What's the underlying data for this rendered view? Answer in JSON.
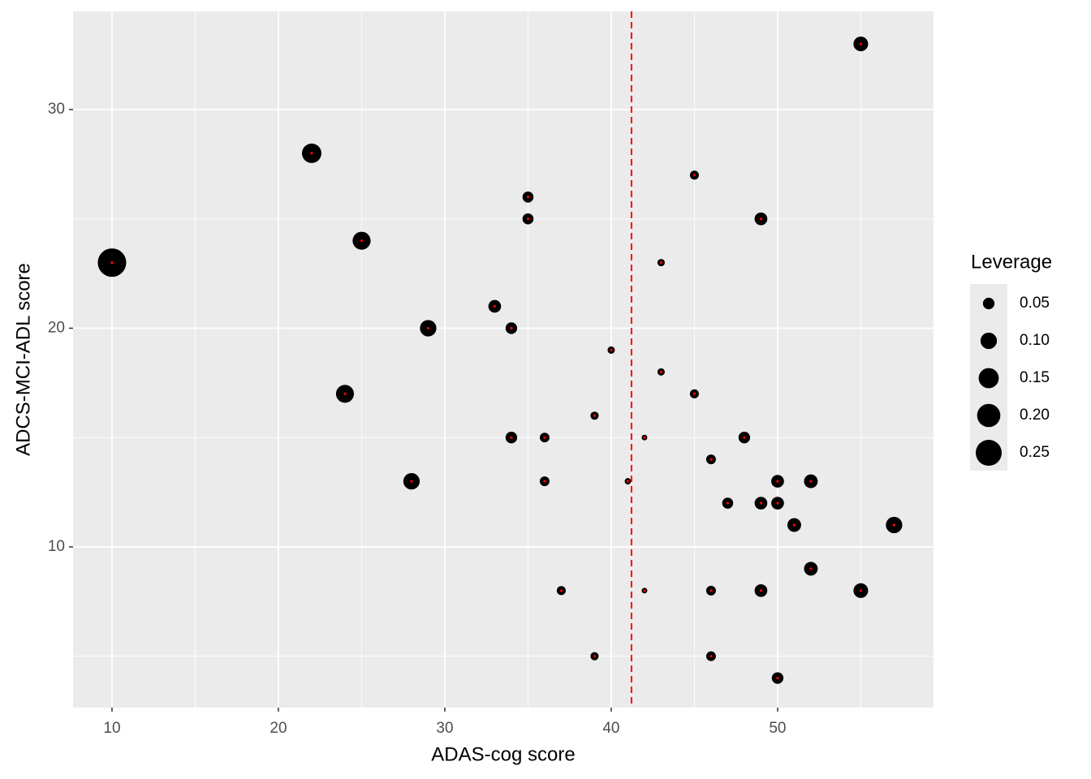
{
  "chart_data": {
    "type": "scatter",
    "x_label": "ADAS-cog score",
    "y_label": "ADCS-MCI-ADL score",
    "legend_title": "Leverage",
    "x": [
      10,
      22,
      25,
      29,
      24,
      28,
      33,
      34,
      35,
      35,
      34,
      36,
      36,
      37,
      39,
      39,
      40,
      41,
      42,
      42,
      43,
      43,
      45,
      45,
      46,
      46,
      46,
      47,
      48,
      49,
      49,
      49,
      50,
      50,
      50,
      51,
      52,
      52,
      55,
      55,
      57
    ],
    "y": [
      23,
      28,
      24,
      20,
      17,
      13,
      21,
      20,
      26,
      25,
      15,
      15,
      13,
      8,
      16,
      5,
      19,
      13,
      15,
      8,
      23,
      18,
      27,
      17,
      14,
      8,
      5,
      12,
      15,
      25,
      12,
      8,
      13,
      12,
      4,
      11,
      13,
      9,
      33,
      8,
      11
    ],
    "size": [
      0.3,
      0.14,
      0.12,
      0.1,
      0.12,
      0.1,
      0.06,
      0.05,
      0.045,
      0.045,
      0.05,
      0.035,
      0.035,
      0.03,
      0.025,
      0.025,
      0.02,
      0.015,
      0.012,
      0.012,
      0.02,
      0.02,
      0.03,
      0.03,
      0.035,
      0.035,
      0.035,
      0.045,
      0.05,
      0.06,
      0.06,
      0.06,
      0.06,
      0.06,
      0.05,
      0.07,
      0.07,
      0.07,
      0.08,
      0.08,
      0.1
    ],
    "point_color": "#000000",
    "center_color": "#ff0000",
    "vline": 41.22,
    "vline_color": "#ff0000",
    "xlim": [
      7.66,
      59.37
    ],
    "ylim": [
      2.65,
      34.49
    ],
    "xticks": [
      10,
      20,
      30,
      40,
      50
    ],
    "yticks": [
      10,
      20,
      30
    ],
    "xminor": [
      15,
      25,
      35,
      45,
      55
    ],
    "yminor": [
      5,
      15,
      25
    ],
    "grid": true,
    "size_breaks": [
      0.05,
      {
        "value": 0.1,
        "label": "0.10"
      },
      0.15,
      {
        "value": 0.2,
        "label": "0.20"
      },
      0.25
    ],
    "legend_position": "right"
  }
}
